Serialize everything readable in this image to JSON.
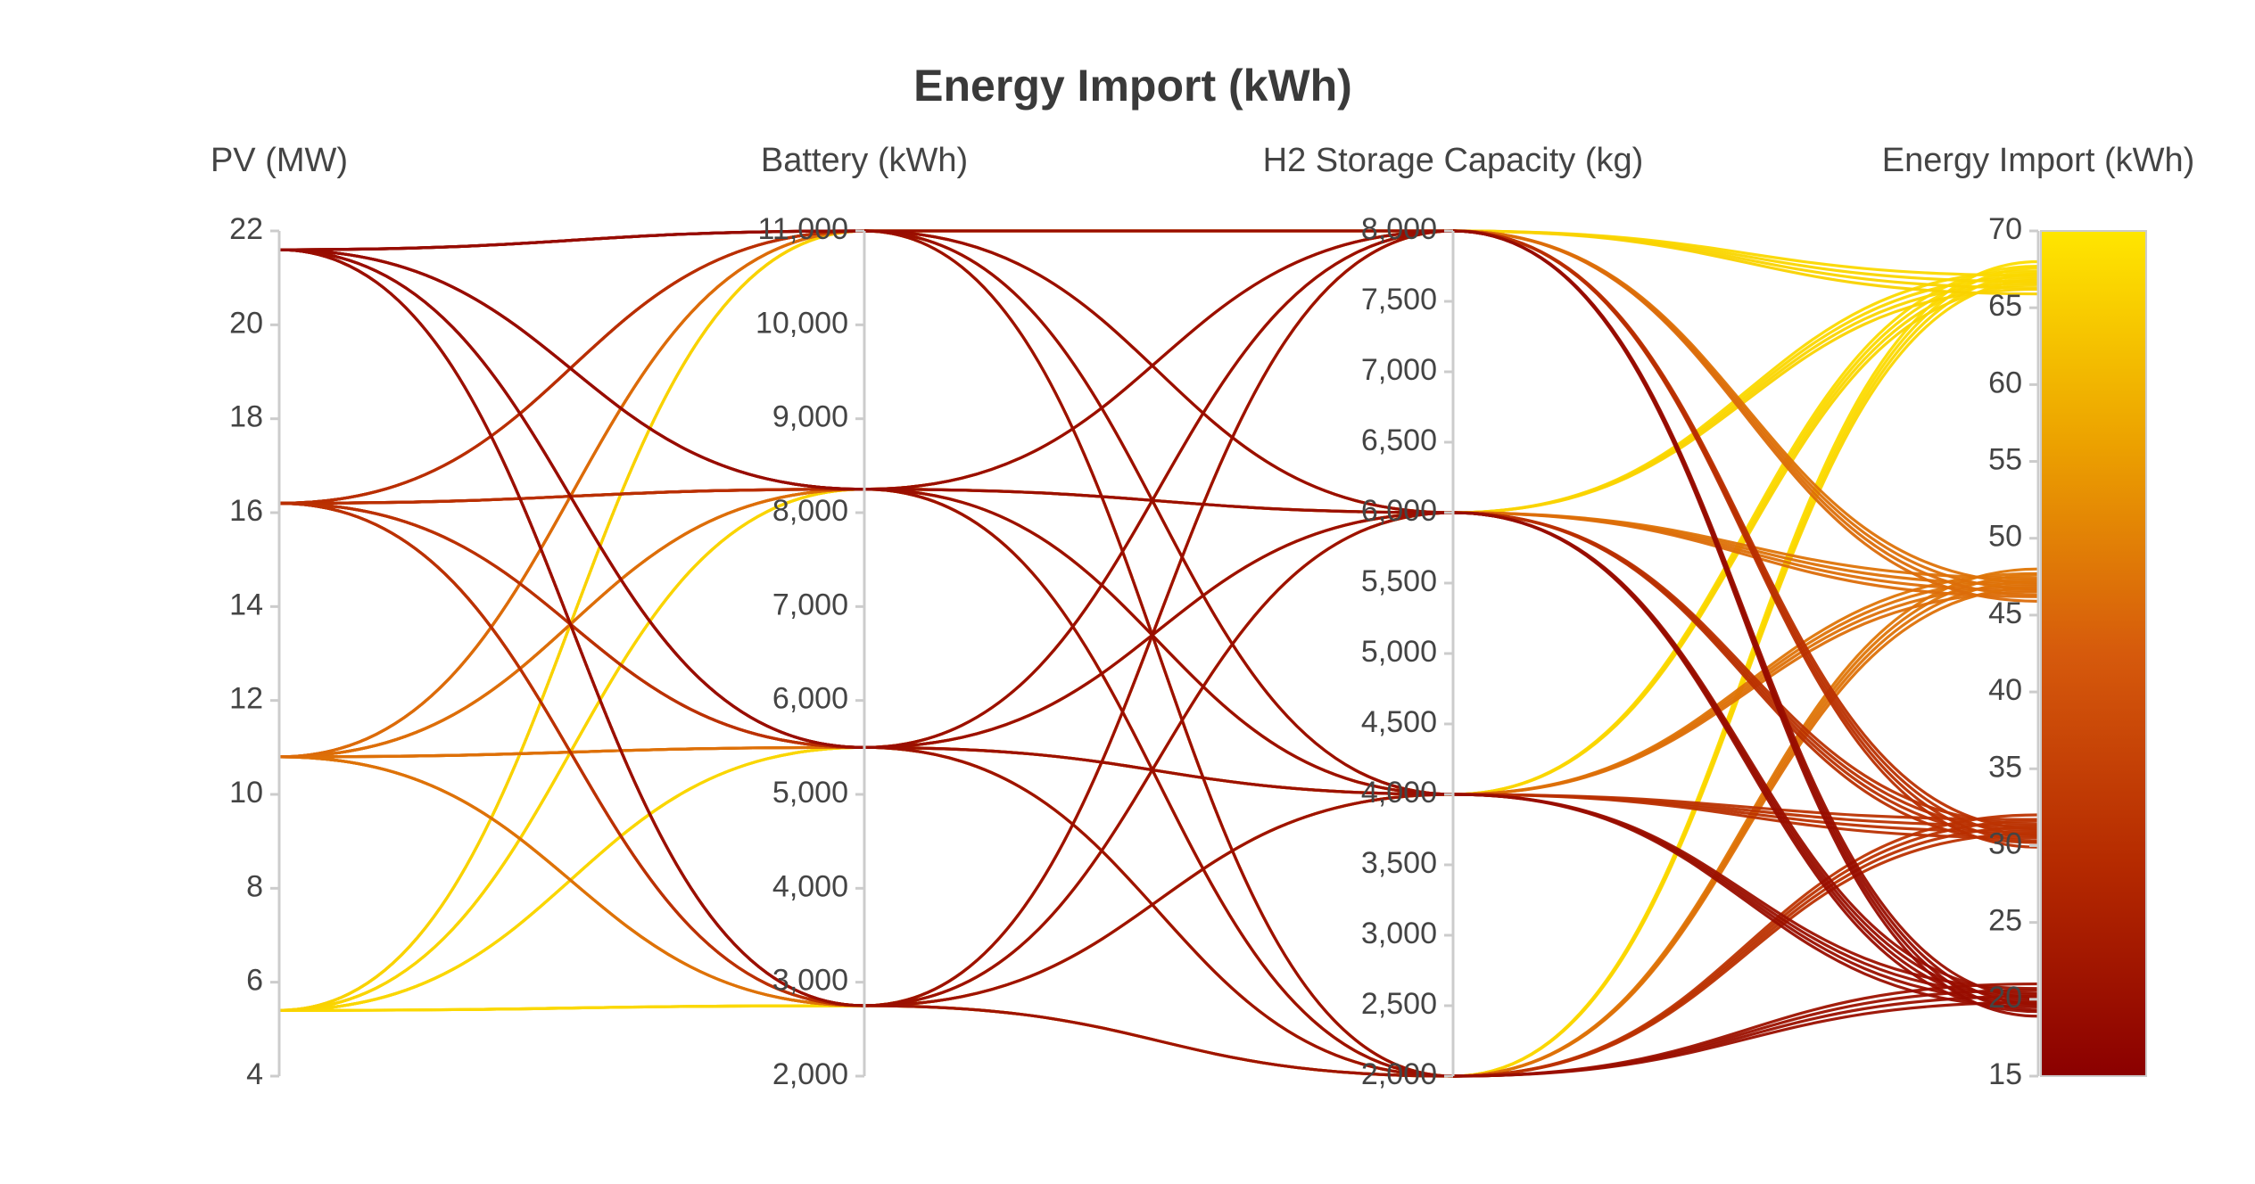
{
  "chart_data": {
    "type": "parcoords",
    "title": "Energy Import (kWh)",
    "colorscale": [
      "#8b0000",
      "#b52a00",
      "#d65a0c",
      "#eca200",
      "#ffe600"
    ],
    "color_dimension": 3,
    "dimensions": [
      {
        "label": "PV (MW)",
        "range": [
          4,
          22
        ],
        "ticks": [
          4,
          6,
          8,
          10,
          12,
          14,
          16,
          18,
          20,
          22
        ],
        "values": [
          5.4,
          5.4,
          5.4,
          5.4,
          5.4,
          5.4,
          5.4,
          5.4,
          5.4,
          5.4,
          5.4,
          5.4,
          5.4,
          5.4,
          5.4,
          5.4,
          10.8,
          10.8,
          10.8,
          10.8,
          10.8,
          10.8,
          10.8,
          10.8,
          10.8,
          10.8,
          10.8,
          10.8,
          10.8,
          10.8,
          10.8,
          10.8,
          16.2,
          16.2,
          16.2,
          16.2,
          16.2,
          16.2,
          16.2,
          16.2,
          16.2,
          16.2,
          16.2,
          16.2,
          16.2,
          16.2,
          16.2,
          16.2,
          21.6,
          21.6,
          21.6,
          21.6,
          21.6,
          21.6,
          21.6,
          21.6,
          21.6,
          21.6,
          21.6,
          21.6,
          21.6,
          21.6,
          21.6,
          21.6
        ]
      },
      {
        "label": "Battery (kWh)",
        "range": [
          2000,
          11000
        ],
        "ticks": [
          {
            "value": 2000,
            "label": "2,000"
          },
          {
            "value": 3000,
            "label": "3,000"
          },
          {
            "value": 4000,
            "label": "4,000"
          },
          {
            "value": 5000,
            "label": "5,000"
          },
          {
            "value": 6000,
            "label": "6,000"
          },
          {
            "value": 7000,
            "label": "7,000"
          },
          {
            "value": 8000,
            "label": "8,000"
          },
          {
            "value": 9000,
            "label": "9,000"
          },
          {
            "value": 10000,
            "label": "10,000"
          },
          {
            "value": 11000,
            "label": "11,000"
          }
        ],
        "values": [
          2750,
          2750,
          2750,
          2750,
          5500,
          5500,
          5500,
          5500,
          8250,
          8250,
          8250,
          8250,
          11000,
          11000,
          11000,
          11000,
          2750,
          2750,
          2750,
          2750,
          5500,
          5500,
          5500,
          5500,
          8250,
          8250,
          8250,
          8250,
          11000,
          11000,
          11000,
          11000,
          2750,
          2750,
          2750,
          2750,
          5500,
          5500,
          5500,
          5500,
          8250,
          8250,
          8250,
          8250,
          11000,
          11000,
          11000,
          11000,
          2750,
          2750,
          2750,
          2750,
          5500,
          5500,
          5500,
          5500,
          8250,
          8250,
          8250,
          8250,
          11000,
          11000,
          11000,
          11000
        ]
      },
      {
        "label": "H2 Storage Capacity (kg)",
        "range": [
          2000,
          8000
        ],
        "ticks": [
          {
            "value": 2000,
            "label": "2,000"
          },
          {
            "value": 2500,
            "label": "2,500"
          },
          {
            "value": 3000,
            "label": "3,000"
          },
          {
            "value": 3500,
            "label": "3,500"
          },
          {
            "value": 4000,
            "label": "4,000"
          },
          {
            "value": 4500,
            "label": "4,500"
          },
          {
            "value": 5000,
            "label": "5,000"
          },
          {
            "value": 5500,
            "label": "5,500"
          },
          {
            "value": 6000,
            "label": "6,000"
          },
          {
            "value": 6500,
            "label": "6,500"
          },
          {
            "value": 7000,
            "label": "7,000"
          },
          {
            "value": 7500,
            "label": "7,500"
          },
          {
            "value": 8000,
            "label": "8,000"
          }
        ],
        "values": [
          2000,
          4000,
          6000,
          8000,
          2000,
          4000,
          6000,
          8000,
          2000,
          4000,
          6000,
          8000,
          2000,
          4000,
          6000,
          8000,
          2000,
          4000,
          6000,
          8000,
          2000,
          4000,
          6000,
          8000,
          2000,
          4000,
          6000,
          8000,
          2000,
          4000,
          6000,
          8000,
          2000,
          4000,
          6000,
          8000,
          2000,
          4000,
          6000,
          8000,
          2000,
          4000,
          6000,
          8000,
          2000,
          4000,
          6000,
          8000,
          2000,
          4000,
          6000,
          8000,
          2000,
          4000,
          6000,
          8000,
          2000,
          4000,
          6000,
          8000,
          2000,
          4000,
          6000,
          8000
        ]
      },
      {
        "label": "Energy Import (kWh)",
        "range": [
          15,
          70
        ],
        "ticks": [
          15,
          20,
          25,
          30,
          35,
          40,
          45,
          50,
          55,
          60,
          65,
          70
        ],
        "values": [
          68,
          67.7,
          67.4,
          67.1,
          67.6,
          67.3,
          67,
          66.7,
          67.2,
          66.9,
          66.6,
          66.3,
          66.8,
          66.5,
          66.2,
          65.9,
          48,
          47.7,
          47.4,
          47.1,
          47.6,
          47.3,
          47,
          46.7,
          47.2,
          46.9,
          46.6,
          46.3,
          46.8,
          46.5,
          46.2,
          45.9,
          32,
          31.7,
          31.4,
          31.1,
          31.6,
          31.3,
          31,
          30.7,
          31.2,
          30.9,
          30.6,
          30.3,
          30.8,
          30.5,
          30.2,
          29.9,
          21,
          20.7,
          20.4,
          20.1,
          20.6,
          20.3,
          20,
          19.7,
          20.2,
          19.9,
          19.6,
          19.3,
          19.8,
          19.5,
          19.2,
          18.9
        ]
      }
    ]
  }
}
